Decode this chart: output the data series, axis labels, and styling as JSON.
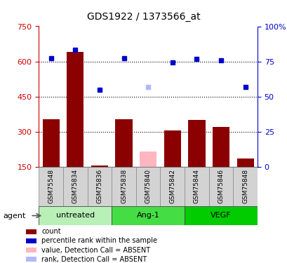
{
  "title": "GDS1922 / 1373566_at",
  "samples": [
    "GSM75548",
    "GSM75834",
    "GSM75836",
    "GSM75838",
    "GSM75840",
    "GSM75842",
    "GSM75844",
    "GSM75846",
    "GSM75848"
  ],
  "groups": [
    {
      "label": "untreated",
      "indices": [
        0,
        1,
        2
      ]
    },
    {
      "label": "Ang-1",
      "indices": [
        3,
        4,
        5
      ]
    },
    {
      "label": "VEGF",
      "indices": [
        6,
        7,
        8
      ]
    }
  ],
  "bar_values": [
    355,
    640,
    155,
    355,
    215,
    305,
    350,
    320,
    185
  ],
  "bar_absent": [
    false,
    false,
    false,
    false,
    true,
    false,
    false,
    false,
    false
  ],
  "rank_values": [
    615,
    650,
    480,
    615,
    490,
    595,
    610,
    605,
    490
  ],
  "rank_absent": [
    false,
    false,
    false,
    false,
    true,
    false,
    false,
    false,
    false
  ],
  "bar_color_present": "#8b0000",
  "bar_color_absent": "#ffb6c1",
  "rank_color_present": "#0000cc",
  "rank_color_absent": "#b0b8ff",
  "ylim_left": [
    150,
    750
  ],
  "ylim_right": [
    0,
    100
  ],
  "yticks_left": [
    150,
    300,
    450,
    600,
    750
  ],
  "yticks_right": [
    0,
    25,
    50,
    75,
    100
  ],
  "hlines": [
    300,
    450,
    600
  ],
  "group_color_untreated": "#b8f0b8",
  "group_color_ang1": "#44dd44",
  "group_color_vegf": "#00cc00",
  "tick_color_left": "#cc0000",
  "tick_color_right": "#0000cc"
}
